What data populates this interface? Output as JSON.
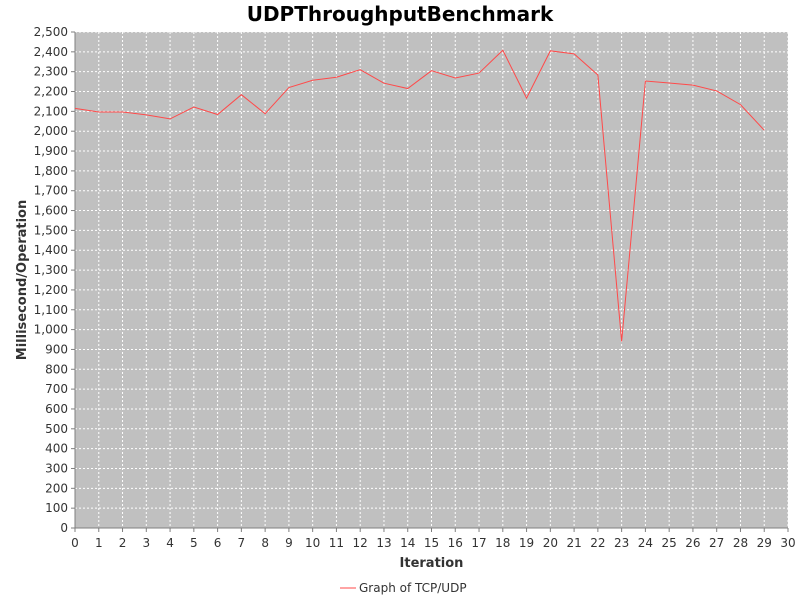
{
  "chart_data": {
    "type": "line",
    "title": "UDPThroughputBenchmark",
    "xlabel": "Iteration",
    "ylabel": "Millisecond/Operation",
    "xlim": [
      0,
      30
    ],
    "ylim": [
      0,
      2500
    ],
    "x_ticks": [
      0,
      1,
      2,
      3,
      4,
      5,
      6,
      7,
      8,
      9,
      10,
      11,
      12,
      13,
      14,
      15,
      16,
      17,
      18,
      19,
      20,
      21,
      22,
      23,
      24,
      25,
      26,
      27,
      28,
      29,
      30
    ],
    "y_ticks": [
      0,
      100,
      200,
      300,
      400,
      500,
      600,
      700,
      800,
      900,
      1000,
      1100,
      1200,
      1300,
      1400,
      1500,
      1600,
      1700,
      1800,
      1900,
      2000,
      2100,
      2200,
      2300,
      2400,
      2500
    ],
    "y_tick_labels": [
      "0",
      "100",
      "200",
      "300",
      "400",
      "500",
      "600",
      "700",
      "800",
      "900",
      "1,000",
      "1,100",
      "1,200",
      "1,300",
      "1,400",
      "1,500",
      "1,600",
      "1,700",
      "1,800",
      "1,900",
      "2,000",
      "2,100",
      "2,200",
      "2,300",
      "2,400",
      "2,500"
    ],
    "grid": true,
    "legend": "bottom",
    "plot_background": "#c0c0c0",
    "series": [
      {
        "name": "Graph of TCP/UDP",
        "color": "#ff4a4a",
        "x": [
          0,
          1,
          2,
          3,
          4,
          5,
          6,
          7,
          8,
          9,
          10,
          11,
          12,
          13,
          14,
          15,
          16,
          17,
          18,
          19,
          20,
          21,
          22,
          23,
          24,
          25,
          26,
          27,
          28,
          29
        ],
        "values": [
          2115,
          2097,
          2097,
          2082,
          2062,
          2122,
          2084,
          2184,
          2088,
          2220,
          2257,
          2272,
          2310,
          2242,
          2215,
          2305,
          2268,
          2293,
          2408,
          2167,
          2405,
          2390,
          2283,
          940,
          2253,
          2243,
          2232,
          2203,
          2134,
          2005
        ]
      }
    ]
  }
}
